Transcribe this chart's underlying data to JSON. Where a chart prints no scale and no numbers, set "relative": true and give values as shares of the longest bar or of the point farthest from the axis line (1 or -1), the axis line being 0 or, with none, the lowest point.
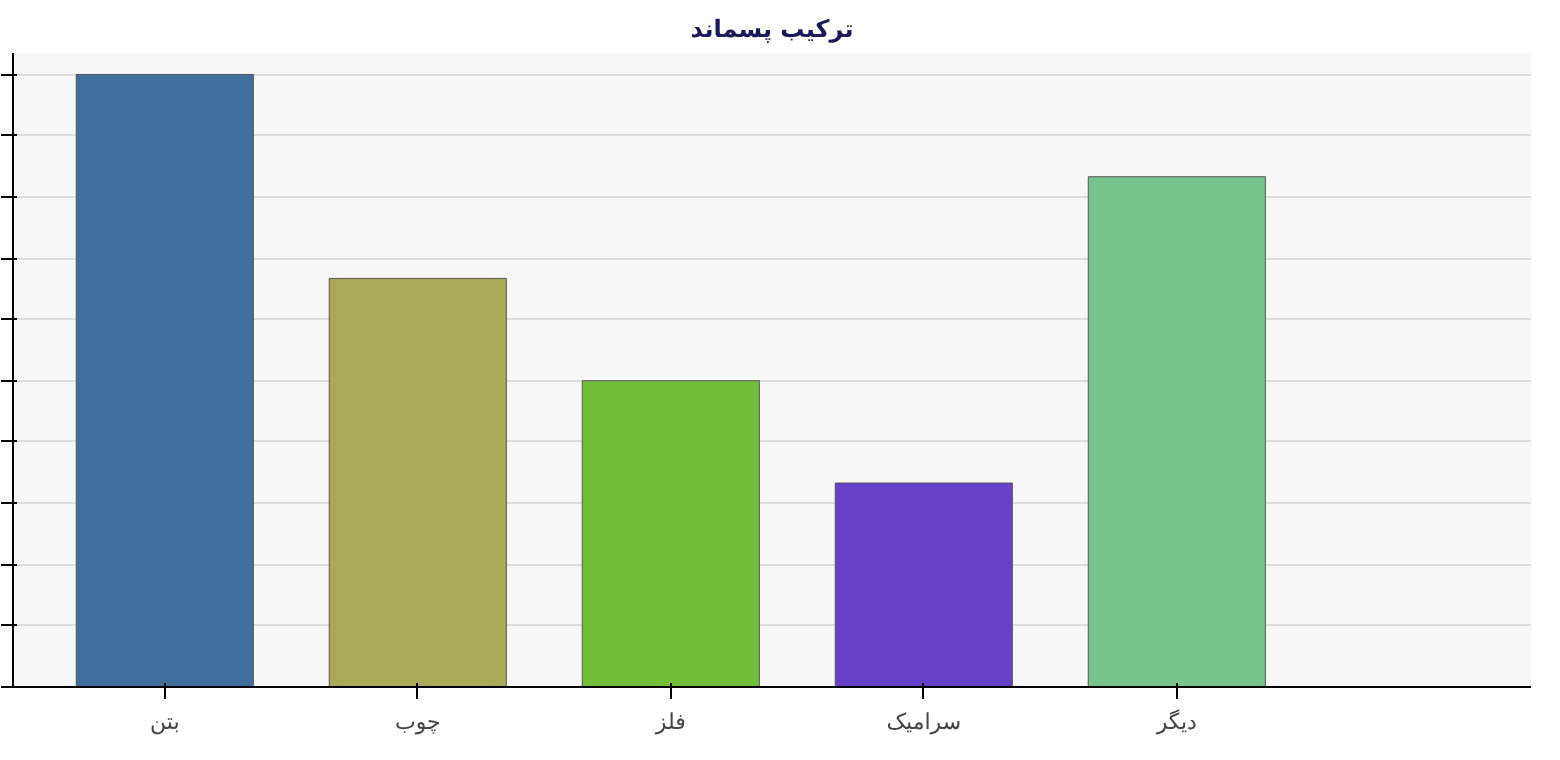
{
  "chart_data": {
    "type": "bar",
    "title": "ترکیب پسماند",
    "relative": true,
    "categories": [
      "بتن",
      "چوب",
      "فلز",
      "سرامیک",
      "دیگر"
    ],
    "values": [
      1,
      0.667,
      0.5,
      0.333,
      0.833
    ],
    "colors": [
      "#3f6f9c",
      "#a9a957",
      "#72bf3a",
      "#6640c8",
      "#78c48d"
    ],
    "grid": "y"
  }
}
